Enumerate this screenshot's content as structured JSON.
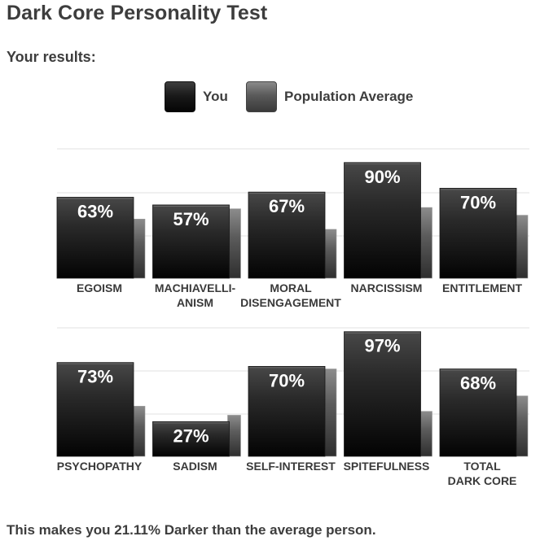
{
  "page": {
    "title": "Dark Core Personality Test",
    "subtitle": "Your results:",
    "footer": "This makes you 21.11% Darker than the average person."
  },
  "legend": {
    "you": "You",
    "population": "Population Average"
  },
  "colors": {
    "you_top": "#3e3e3e",
    "you_bottom": "#050505",
    "pop_top": "#8a8a8a",
    "pop_bottom": "#3a3a3a",
    "grid": "#e6e6e6",
    "text": "#3a3a3a"
  },
  "chart_data": [
    {
      "type": "bar",
      "categories": [
        [
          "EGOISM"
        ],
        [
          "MACHIAVELLI-",
          "ANISM"
        ],
        [
          "MORAL",
          "DISENGAGEMENT"
        ],
        [
          "NARCISSISM"
        ],
        [
          "ENTITLEMENT"
        ]
      ],
      "series": [
        {
          "name": "You",
          "values": [
            63,
            57,
            67,
            90,
            70
          ]
        },
        {
          "name": "Population Average",
          "values": [
            46,
            54,
            38,
            55,
            49
          ]
        }
      ],
      "data_labels": [
        "63%",
        "57%",
        "67%",
        "90%",
        "70%"
      ],
      "ylim": [
        0,
        100
      ],
      "grid": true
    },
    {
      "type": "bar",
      "categories": [
        [
          "PSYCHOPATHY"
        ],
        [
          "SADISM"
        ],
        [
          "SELF-INTEREST"
        ],
        [
          "SPITEFULNESS"
        ],
        [
          "TOTAL",
          "DARK CORE"
        ]
      ],
      "series": [
        {
          "name": "You",
          "values": [
            73,
            27,
            70,
            97,
            68
          ]
        },
        {
          "name": "Population Average",
          "values": [
            39,
            32,
            68,
            35,
            47
          ]
        }
      ],
      "data_labels": [
        "73%",
        "27%",
        "70%",
        "97%",
        "68%"
      ],
      "ylim": [
        0,
        100
      ],
      "grid": true
    }
  ]
}
